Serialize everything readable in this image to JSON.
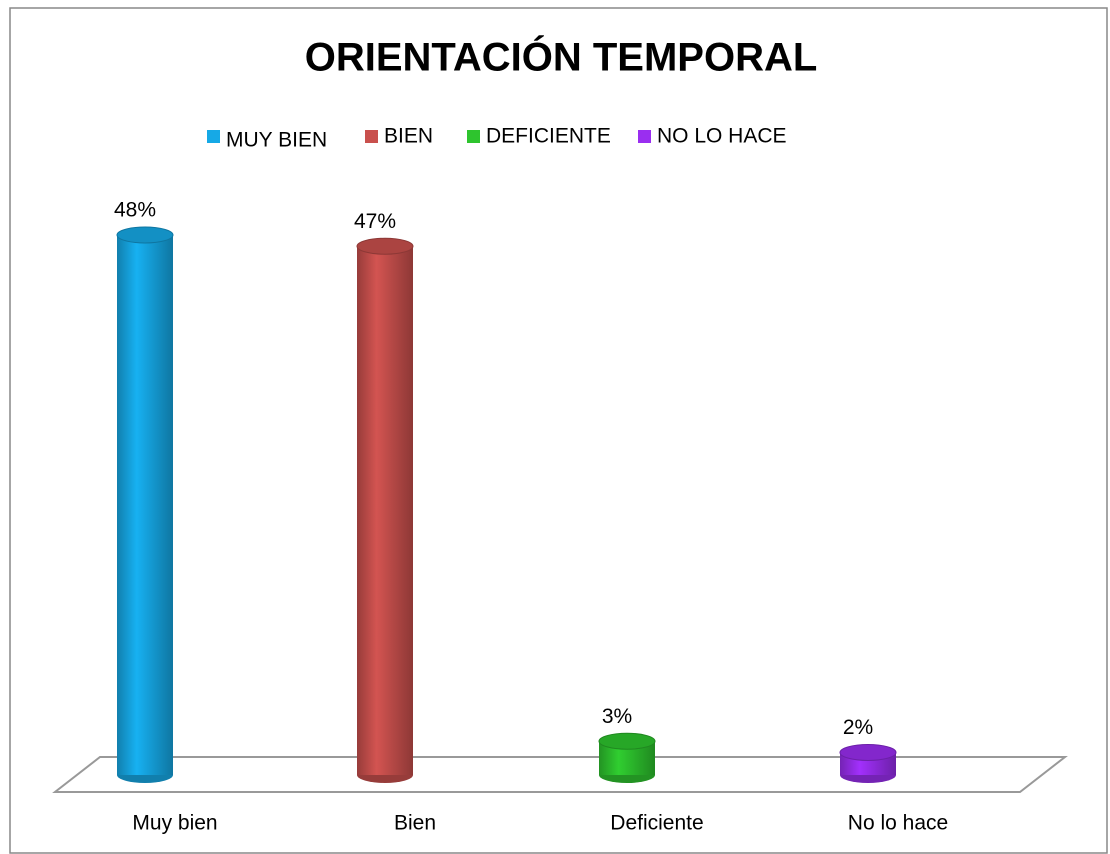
{
  "chart_data": {
    "type": "bar3d",
    "title": "ORIENTACIÓN TEMPORAL",
    "categories": [
      "Muy bien",
      "Bien",
      "Deficiente",
      "No lo hace"
    ],
    "values": [
      48,
      47,
      3,
      2
    ],
    "value_labels": [
      "48%",
      "47%",
      "3%",
      "2%"
    ],
    "legend": [
      "MUY BIEN",
      "BIEN",
      "DEFICIENTE",
      "NO LO HACE"
    ],
    "colors": [
      "#16a9e6",
      "#c9504d",
      "#2ec42e",
      "#9a2ef0"
    ]
  }
}
